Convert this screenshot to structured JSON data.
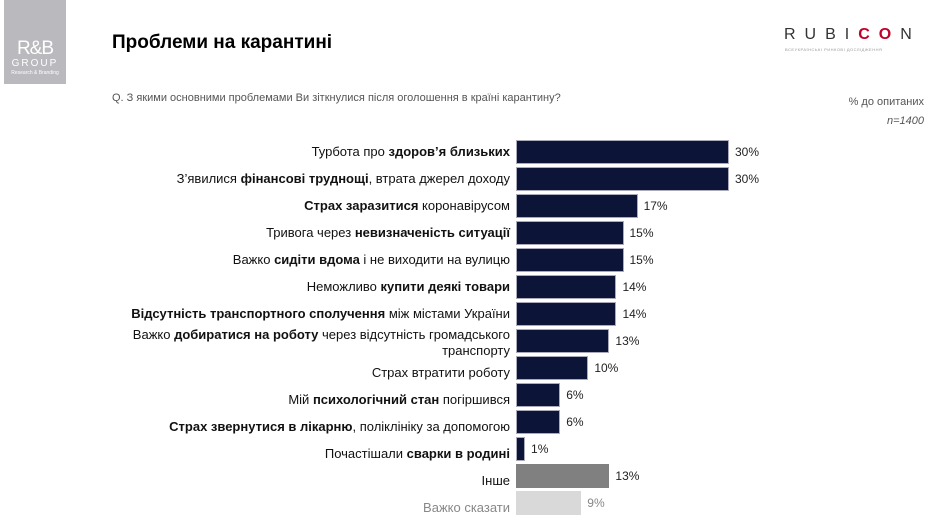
{
  "logo_left": {
    "line1": "R&B",
    "line2": "GROUP",
    "line3": "Research & Branding"
  },
  "logo_right": {
    "pre": "RUBI",
    "mid": "CO",
    "post": "N",
    "sub": "ВСЕУКРАЇНСЬКІ РИНКОВІ ДОСЛІДЖЕННЯ"
  },
  "colors": {
    "bar": "#0c1538",
    "other": "#808080",
    "hard_to_say": "#d9d9d9",
    "accent": "#c0002a"
  },
  "chart_data": {
    "type": "bar",
    "orientation": "horizontal",
    "title": "Проблеми на карантині",
    "question": "Q. З якими основними проблемами Ви зіткнулися після оголошення в країні карантину?",
    "unit_label": "% до опитаних",
    "n_label": "n=1400",
    "xlim": [
      0,
      30
    ],
    "categories": [
      [
        {
          "t": "Турбота про "
        },
        {
          "t": "здоров’я близьких",
          "b": 1
        }
      ],
      [
        {
          "t": "З’явилися "
        },
        {
          "t": "фінансові труднощі",
          "b": 1
        },
        {
          "t": ", втрата джерел доходу"
        }
      ],
      [
        {
          "t": "Страх заразитися",
          "b": 1
        },
        {
          "t": " коронавірусом"
        }
      ],
      [
        {
          "t": "Тривога через "
        },
        {
          "t": "невизначеність ситуації",
          "b": 1
        }
      ],
      [
        {
          "t": "Важко "
        },
        {
          "t": "сидіти вдома",
          "b": 1
        },
        {
          "t": " і не виходити на вулицю"
        }
      ],
      [
        {
          "t": "Неможливо "
        },
        {
          "t": "купити деякі товари",
          "b": 1
        }
      ],
      [
        {
          "t": "Відсутність транспортного сполучення",
          "b": 1
        },
        {
          "t": " між містами України"
        }
      ],
      [
        {
          "t": "Важко "
        },
        {
          "t": "добиратися на роботу",
          "b": 1
        },
        {
          "t": " через відсутність громадського транспорту"
        }
      ],
      [
        {
          "t": "Страх втратити роботу"
        }
      ],
      [
        {
          "t": "Мій "
        },
        {
          "t": "психологічний стан",
          "b": 1
        },
        {
          "t": " погіршився"
        }
      ],
      [
        {
          "t": "Страх звернутися в лікарню",
          "b": 1
        },
        {
          "t": ", поліклініку за допомогою"
        }
      ],
      [
        {
          "t": "Почастішали "
        },
        {
          "t": "сварки в родині",
          "b": 1
        }
      ],
      [
        {
          "t": "Інше"
        }
      ],
      [
        {
          "t": "Важко сказати"
        }
      ]
    ],
    "values": [
      30,
      30,
      17,
      15,
      15,
      14,
      14,
      13,
      10,
      6,
      6,
      1,
      13,
      9
    ],
    "value_labels": [
      "30%",
      "30%",
      "17%",
      "15%",
      "15%",
      "14%",
      "14%",
      "13%",
      "10%",
      "6%",
      "6%",
      "1%",
      "13%",
      "9%"
    ]
  }
}
